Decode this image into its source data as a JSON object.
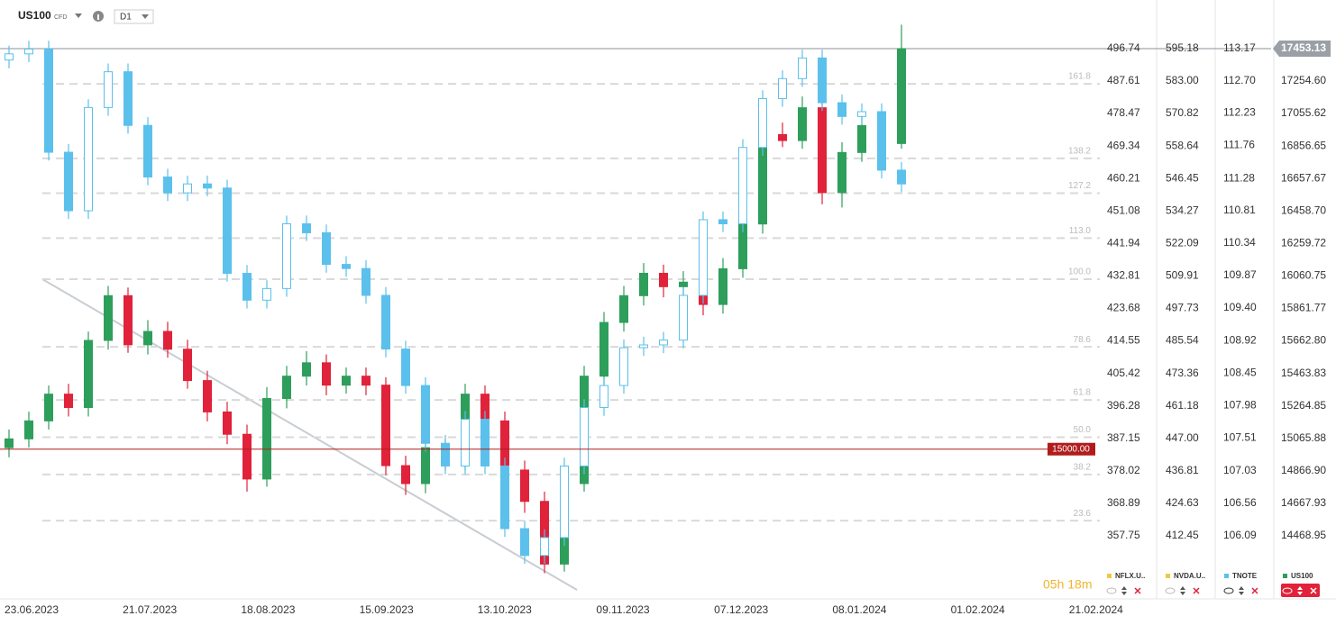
{
  "chart_data": {
    "type": "candlestick",
    "symbol": "US100",
    "instrument_type": "CFD",
    "timeframe": "D1",
    "timer": "05h 18m",
    "categories": [
      "23.06.2023",
      "21.07.2023",
      "18.08.2023",
      "15.09.2023",
      "13.10.2023",
      "09.11.2023",
      "07.12.2023",
      "08.01.2024",
      "01.02.2024",
      "21.02.2024"
    ],
    "ylim": [
      14138,
      17585.5
    ],
    "yticks": [
      17453.13,
      {
        "value": 17254.6,
        "label": "17254.60"
      },
      17055.62,
      16856.65,
      16657.67,
      {
        "value": 16458.7,
        "label": "16458.70"
      },
      16259.72,
      16060.75,
      15861.77,
      {
        "value": 15662.8,
        "label": "15662.80"
      },
      15463.83,
      15264.85,
      15065.88,
      {
        "value": 14866.9,
        "label": "14866.90"
      },
      14667.93,
      14468.95
    ],
    "y2lim": [
      105.3,
      113.48
    ],
    "y2ticks": [
      113.17,
      {
        "value": 112.7,
        "label": "112.70"
      },
      112.23,
      111.76,
      111.28,
      110.81,
      110.34,
      109.87,
      {
        "value": 109.4,
        "label": "109.40"
      },
      108.92,
      108.45,
      107.98,
      107.51,
      107.03,
      106.56,
      106.09
    ],
    "extra_scales": [
      {
        "labels": [
          "496.74",
          "487.61",
          "478.47",
          "469.34",
          "460.21",
          "451.08",
          "441.94",
          "432.81",
          "423.68",
          "414.55",
          "405.42",
          "396.28",
          "387.15",
          "378.02",
          "368.89",
          "357.75"
        ]
      },
      {
        "labels": [
          "595.18",
          "583.00",
          "570.82",
          "558.64",
          "546.45",
          "534.27",
          "522.09",
          "509.91",
          "497.73",
          "485.54",
          "473.36",
          "461.18",
          "447.00",
          "436.81",
          "424.63",
          "412.45"
        ]
      }
    ],
    "fib": {
      "low": 14105,
      "high": 16041,
      "levels": [
        161.8,
        138.2,
        127.2,
        {
          "value": 113,
          "label": "113.0"
        },
        {
          "value": 100,
          "label": "100.0"
        },
        78.6,
        61.8,
        {
          "value": 50,
          "label": "50.0"
        },
        38.2,
        23.6
      ]
    },
    "hline": {
      "value": 15000,
      "label": "15000.00",
      "color": "#b01c1c"
    },
    "price_line": {
      "value": 17453.13,
      "color": "#8a9099"
    },
    "legend": [
      {
        "name": "NFLX.U..",
        "color": "#f2c744"
      },
      {
        "name": "NVDA.U..",
        "color": "#f2c744"
      },
      {
        "name": "TNOTE",
        "color": "#5bc0eb"
      },
      {
        "name": "US100",
        "color": "#2e9e5b"
      }
    ],
    "series": [
      {
        "name": "US100",
        "up_color": "#2e9e5b",
        "down_color": "#e0223a",
        "ohlc": [
          [
            15009,
            15120,
            14950,
            15063
          ],
          [
            15063,
            15230,
            15010,
            15173
          ],
          [
            15173,
            15390,
            15120,
            15337
          ],
          [
            15337,
            15400,
            15200,
            15255
          ],
          [
            15255,
            15720,
            15200,
            15666
          ],
          [
            15666,
            16000,
            15610,
            15940
          ],
          [
            15940,
            15990,
            15590,
            15639
          ],
          [
            15639,
            15790,
            15580,
            15721
          ],
          [
            15721,
            15780,
            15560,
            15612
          ],
          [
            15612,
            15670,
            15370,
            15420
          ],
          [
            15420,
            15480,
            15170,
            15228
          ],
          [
            15228,
            15290,
            15030,
            15091
          ],
          [
            15091,
            15150,
            14740,
            14817
          ],
          [
            14817,
            15380,
            14770,
            15310
          ],
          [
            15310,
            15510,
            15250,
            15447
          ],
          [
            15447,
            15600,
            15390,
            15529
          ],
          [
            15529,
            15580,
            15330,
            15392
          ],
          [
            15392,
            15500,
            15340,
            15447
          ],
          [
            15447,
            15500,
            15330,
            15392
          ],
          [
            15392,
            15440,
            14840,
            14899
          ],
          [
            14899,
            14960,
            14720,
            14789
          ],
          [
            14789,
            15070,
            14730,
            15009
          ],
          [
            15009,
            15060,
            14870,
            14926
          ],
          [
            14926,
            15400,
            14870,
            15337
          ],
          [
            15337,
            15390,
            15110,
            15173
          ],
          [
            15173,
            15230,
            14810,
            14872
          ],
          [
            14872,
            14930,
            14610,
            14680
          ],
          [
            14680,
            14740,
            14240,
            14296
          ],
          [
            14296,
            14850,
            14250,
            14789
          ],
          [
            14789,
            15510,
            14740,
            15447
          ],
          [
            15447,
            15840,
            15390,
            15776
          ],
          [
            15776,
            16000,
            15720,
            15940
          ],
          [
            15940,
            16140,
            15880,
            16077
          ],
          [
            16077,
            16130,
            15930,
            15995
          ],
          [
            15995,
            16090,
            15940,
            16023
          ],
          [
            16023,
            16080,
            15820,
            15886
          ],
          [
            15886,
            16170,
            15830,
            16105
          ],
          [
            16105,
            16440,
            16050,
            16379
          ],
          [
            16379,
            16990,
            16320,
            16927
          ],
          [
            16927,
            17000,
            16850,
            16890
          ],
          [
            16890,
            17160,
            16840,
            17091
          ],
          [
            17091,
            17150,
            16500,
            16571
          ],
          [
            16571,
            16880,
            16480,
            16817
          ],
          [
            16817,
            17050,
            16760,
            16982
          ],
          [
            16982,
            17040,
            16800,
            16872
          ],
          [
            16872,
            17600,
            16840,
            17453.13
          ]
        ]
      },
      {
        "name": "TNOTE",
        "axis": "y2",
        "up_color": "#ffffff",
        "down_color": "#5bc0eb",
        "color": "#5bc0eb",
        "ohlc": [
          [
            113.0,
            113.21,
            112.88,
            113.09
          ],
          [
            113.09,
            113.28,
            112.97,
            113.16
          ],
          [
            113.16,
            113.28,
            111.54,
            111.66
          ],
          [
            111.66,
            111.78,
            110.69,
            110.81
          ],
          [
            110.81,
            112.43,
            110.69,
            112.31
          ],
          [
            112.31,
            112.95,
            112.19,
            112.83
          ],
          [
            112.83,
            112.95,
            111.93,
            112.05
          ],
          [
            112.05,
            112.17,
            111.18,
            111.3
          ],
          [
            111.3,
            111.42,
            110.95,
            111.07
          ],
          [
            111.07,
            111.32,
            110.95,
            111.2
          ],
          [
            111.2,
            111.32,
            111.02,
            111.14
          ],
          [
            111.14,
            111.26,
            109.78,
            109.9
          ],
          [
            109.9,
            110.02,
            109.39,
            109.51
          ],
          [
            109.51,
            109.8,
            109.39,
            109.68
          ],
          [
            109.68,
            110.74,
            109.56,
            110.62
          ],
          [
            110.62,
            110.74,
            110.37,
            110.49
          ],
          [
            110.49,
            110.61,
            109.91,
            110.03
          ],
          [
            110.03,
            110.15,
            109.85,
            109.97
          ],
          [
            109.97,
            110.09,
            109.46,
            109.58
          ],
          [
            109.58,
            109.7,
            108.68,
            108.8
          ],
          [
            108.8,
            108.92,
            108.15,
            108.27
          ],
          [
            108.27,
            108.39,
            107.31,
            107.43
          ],
          [
            107.43,
            107.55,
            106.98,
            107.1
          ],
          [
            107.1,
            107.9,
            106.98,
            107.78
          ],
          [
            107.78,
            107.9,
            106.98,
            107.1
          ],
          [
            107.1,
            107.22,
            106.07,
            106.19
          ],
          [
            106.19,
            106.31,
            105.68,
            105.8
          ],
          [
            105.8,
            106.18,
            105.68,
            106.06
          ],
          [
            106.06,
            107.22,
            105.94,
            107.1
          ],
          [
            107.1,
            108.07,
            106.98,
            107.95
          ],
          [
            107.95,
            108.39,
            107.83,
            108.27
          ],
          [
            108.27,
            108.94,
            108.15,
            108.82
          ],
          [
            108.82,
            108.98,
            108.7,
            108.86
          ],
          [
            108.86,
            109.05,
            108.74,
            108.93
          ],
          [
            108.93,
            109.7,
            108.81,
            109.58
          ],
          [
            109.58,
            110.8,
            109.46,
            110.68
          ],
          [
            110.68,
            110.8,
            110.5,
            110.62
          ],
          [
            110.62,
            111.85,
            110.5,
            111.73
          ],
          [
            111.73,
            112.56,
            111.61,
            112.44
          ],
          [
            112.44,
            112.85,
            112.32,
            112.73
          ],
          [
            112.73,
            113.15,
            112.61,
            113.03
          ],
          [
            113.03,
            113.15,
            112.26,
            112.38
          ],
          [
            112.38,
            112.5,
            112.06,
            112.18
          ],
          [
            112.18,
            112.37,
            112.06,
            112.25
          ],
          [
            112.25,
            112.37,
            111.28,
            111.4
          ],
          [
            111.4,
            111.52,
            111.08,
            111.2
          ]
        ]
      }
    ]
  }
}
